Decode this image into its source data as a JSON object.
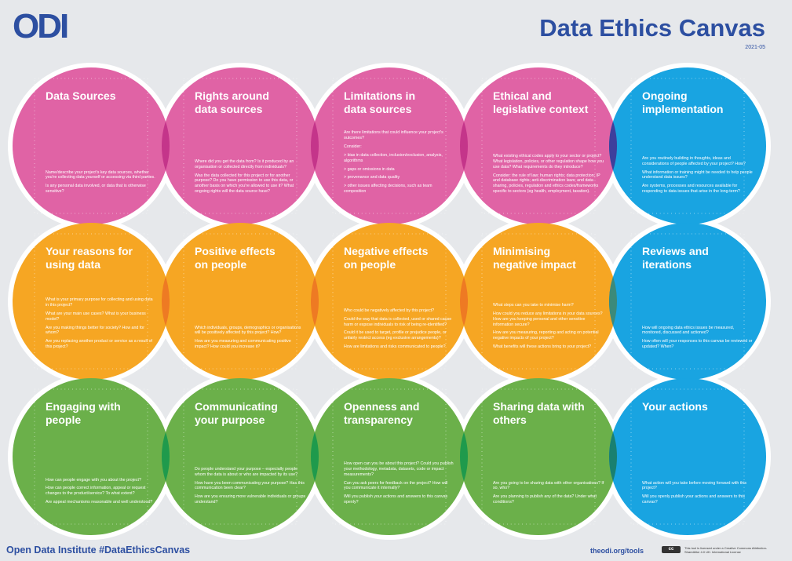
{
  "header": {
    "logo": "ODI",
    "title": "Data Ethics Canvas",
    "date": "2021-05"
  },
  "cards": [
    {
      "title": [
        "Data Sources"
      ],
      "questions": [
        "Name/describe your project's key data sources, whether you're collecting data yourself or accessing via third parties.",
        "Is any personal data involved, or data that is otherwise sensitive?"
      ]
    },
    {
      "title": [
        "Rights around",
        "data sources"
      ],
      "questions": [
        "Where did you get the data from? Is it produced by an organisation or collected directly from individuals?",
        "Was the data collected for this project or for another purpose? Do you have permission to use this data, or another basis on which you're allowed to use it? What ongoing rights will the data source have?"
      ]
    },
    {
      "title": [
        "Limitations in",
        "data sources"
      ],
      "questions": [
        "Are there limitations that could influence your project's outcomes?",
        "Consider:",
        "> bias in data collection, inclusion/exclusion, analysis, algorithms",
        "> gaps or omissions in data",
        "> provenance and data quality",
        "> other issues affecting decisions, such as team composition"
      ]
    },
    {
      "title": [
        "Ethical and",
        "legislative context"
      ],
      "questions": [
        "What existing ethical codes apply to your sector or project? What legislation, policies, or other regulation shape how you use data? What requirements do they introduce?",
        "Consider: the rule of law; human rights; data protection; IP and database rights; anti-discrimination laws; and data sharing, policies, regulation and ethics codes/frameworks specific to sectors (eg health, employment, taxation)."
      ]
    },
    {
      "title": [
        "Ongoing",
        "implementation"
      ],
      "questions": [
        "Are you routinely building in thoughts, ideas and considerations of people affected by your project? How?",
        "What information or training might be needed to help people understand data issues?",
        "Are systems, processes and resources available for responding to data issues that arise in the long-term?"
      ]
    },
    {
      "title": [
        "Your reasons for",
        "using data"
      ],
      "questions": [
        "What is your primary purpose for collecting and using data in this project?",
        "What are your main use cases? What is your business model?",
        "Are you making things better for society? How and for whom?",
        "Are you replacing another product or service as a result of this project?"
      ]
    },
    {
      "title": [
        "Positive effects",
        "on people"
      ],
      "questions": [
        "Which individuals, groups, demographics or organisations will be positively affected by this project? How?",
        "How are you measuring and communicating positive impact? How could you increase it?"
      ]
    },
    {
      "title": [
        "Negative effects",
        "on people"
      ],
      "questions": [
        "Who could be negatively affected by this project?",
        "Could the way that data is collected, used or shared cause harm or expose individuals to risk of being re-identified?",
        "Could it be used to target, profile or prejudice people, or unfairly restrict access (eg exclusive arrangements)?",
        "How are limitations and risks communicated to people?"
      ]
    },
    {
      "title": [
        "Minimising",
        "negative impact"
      ],
      "questions": [
        "What steps can you take to minimise harm?",
        "How could you reduce any limitations in your data sources? How are you keeping personal and other sensitive information secure?",
        "How are you measuring, reporting and acting on potential negative impacts of your project?",
        "What benefits will these actions bring to your project?"
      ]
    },
    {
      "title": [
        "Reviews and",
        "iterations"
      ],
      "questions": [
        "How will ongoing data ethics issues be measured, monitored, discussed and actioned?",
        "How often will your responses to this canvas be reviewed or updated? When?"
      ]
    },
    {
      "title": [
        "Engaging with",
        "people"
      ],
      "questions": [
        "How can people engage with you about the project?",
        "How can people correct information, appeal or request changes to the product/service? To what extent?",
        "Are appeal mechanisms reasonable and well understood?"
      ]
    },
    {
      "title": [
        "Communicating",
        "your purpose"
      ],
      "questions": [
        "Do people understand your purpose – especially people whom the data is about or who are impacted by its use?",
        "How have you been communicating your purpose? Has this communication been clear?",
        "How are you ensuring more vulnerable individuals or groups understand?"
      ]
    },
    {
      "title": [
        "Openness and",
        "transparency"
      ],
      "questions": [
        "How open can you be about this project? Could you publish your methodology, metadata, datasets, code or impact measurements?",
        "Can you ask peers for feedback on the project? How will you communicate it internally?",
        "Will you publish your actions and answers to this canvas openly?"
      ]
    },
    {
      "title": [
        "Sharing data with",
        "others"
      ],
      "questions": [
        "Are you going to be sharing data with other organisations? If so, who?",
        "Are you planning to publish any of the data? Under what conditions?"
      ]
    },
    {
      "title": [
        "Your actions"
      ],
      "questions": [
        "What action will you take before moving forward with this project?",
        "Will you openly publish your actions and answers to this canvas?"
      ]
    }
  ],
  "footer": {
    "left": "Open Data Institute #DataEthicsCanvas",
    "url": "theodi.org/tools",
    "cc": "cc",
    "license": "This tool is licensed under a Creative Commons Attribution-ShareAlike 4.0 UK: International License"
  }
}
